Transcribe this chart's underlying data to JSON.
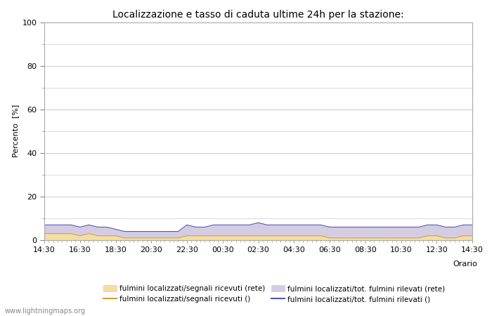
{
  "title": "Localizzazione e tasso di caduta ultime 24h per la stazione:",
  "ylabel": "Percento  [%]",
  "xlim": [
    0,
    48
  ],
  "ylim": [
    0,
    100
  ],
  "yticks": [
    0,
    20,
    40,
    60,
    80,
    100
  ],
  "ytick_minor": [
    10,
    30,
    50,
    70,
    90
  ],
  "xtick_labels": [
    "14:30",
    "16:30",
    "18:30",
    "20:30",
    "22:30",
    "00:30",
    "02:30",
    "04:30",
    "06:30",
    "08:30",
    "10:30",
    "12:30",
    "14:30"
  ],
  "xtick_positions": [
    0,
    4,
    8,
    12,
    16,
    20,
    24,
    28,
    32,
    36,
    40,
    44,
    48
  ],
  "fill_rete_color": "#d4cce0",
  "fill_segnali_color": "#f5dfa0",
  "line_segnali_color": "#d4a030",
  "line_rete_color": "#5555bb",
  "background_color": "#ffffff",
  "grid_color": "#cccccc",
  "watermark": "www.lightningmaps.org",
  "orario_label": "Orario",
  "legend_labels": [
    "fulmini localizzati/segnali ricevuti (rete)",
    "fulmini localizzati/segnali ricevuti ()",
    "fulmini localizzati/tot. fulmini rilevati (rete)",
    "fulmini localizzati/tot. fulmini rilevati ()"
  ],
  "tot_rete_values": [
    7,
    7,
    7,
    7,
    6,
    7,
    6,
    6,
    5,
    4,
    4,
    4,
    4,
    4,
    4,
    4,
    7,
    6,
    6,
    7,
    7,
    7,
    7,
    7,
    8,
    7,
    7,
    7,
    7,
    7,
    7,
    7,
    6,
    6,
    6,
    6,
    6,
    6,
    6,
    6,
    6,
    6,
    6,
    7,
    7,
    6,
    6,
    7,
    7
  ],
  "segnali_rete_values": [
    3,
    3,
    3,
    3,
    2,
    3,
    2,
    2,
    2,
    1,
    1,
    1,
    1,
    1,
    1,
    1,
    2,
    2,
    2,
    2,
    2,
    2,
    2,
    2,
    2,
    2,
    2,
    2,
    2,
    2,
    2,
    2,
    1,
    1,
    1,
    1,
    1,
    1,
    1,
    1,
    1,
    1,
    1,
    2,
    2,
    1,
    1,
    2,
    2
  ]
}
